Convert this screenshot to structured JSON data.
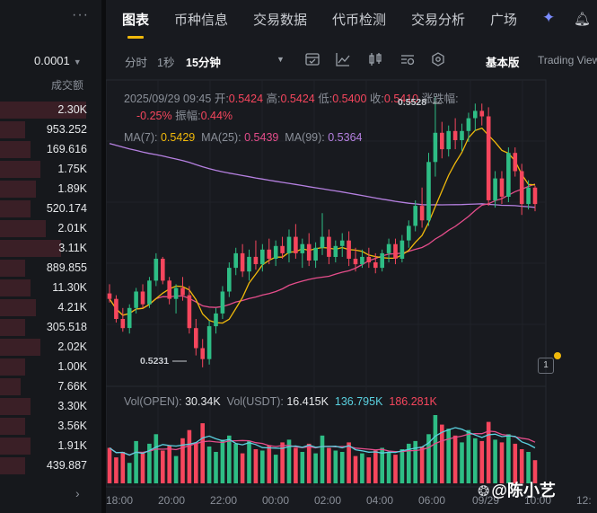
{
  "orderbook": {
    "more_label": "···",
    "precision": "0.0001",
    "volume_header": "成交额",
    "rows": [
      {
        "vol": "2.30K",
        "fill": 0.85
      },
      {
        "vol": "953.252",
        "fill": 0.25
      },
      {
        "vol": "169.616",
        "fill": 0.3
      },
      {
        "vol": "1.75K",
        "fill": 0.4
      },
      {
        "vol": "1.89K",
        "fill": 0.35
      },
      {
        "vol": "520.174",
        "fill": 0.3
      },
      {
        "vol": "2.01K",
        "fill": 0.45
      },
      {
        "vol": "3.11K",
        "fill": 0.6
      },
      {
        "vol": "889.855",
        "fill": 0.25
      },
      {
        "vol": "11.30K",
        "fill": 0.3
      },
      {
        "vol": "4.21K",
        "fill": 0.35
      },
      {
        "vol": "305.518",
        "fill": 0.25
      },
      {
        "vol": "2.02K",
        "fill": 0.4
      },
      {
        "vol": "1.00K",
        "fill": 0.25
      },
      {
        "vol": "7.66K",
        "fill": 0.2
      },
      {
        "vol": "3.30K",
        "fill": 0.3
      },
      {
        "vol": "3.56K",
        "fill": 0.25
      },
      {
        "vol": "1.91K",
        "fill": 0.3
      },
      {
        "vol": "439.887",
        "fill": 0.25
      }
    ],
    "expand_label": "›"
  },
  "tabs": [
    {
      "label": "图表",
      "active": true
    },
    {
      "label": "币种信息",
      "active": false
    },
    {
      "label": "交易数据",
      "active": false
    },
    {
      "label": "代币检测",
      "active": false
    },
    {
      "label": "交易分析",
      "active": false
    },
    {
      "label": "广场",
      "active": false
    }
  ],
  "toolbar": {
    "intervals": [
      {
        "label": "分时",
        "selected": false
      },
      {
        "label": "1秒",
        "selected": false
      },
      {
        "label": "15分钟",
        "selected": true
      }
    ],
    "caret": "▼",
    "tools": [
      "indicator-icon",
      "line-tool-icon",
      "candle-type-icon",
      "drawing-icon",
      "settings-icon"
    ],
    "basic_view": "基本版",
    "tradingview": "Trading View"
  },
  "ohlc": {
    "date": "2025/09/29 09:45",
    "open_label": "开:",
    "open": "0.5424",
    "high_label": "高:",
    "high": "0.5424",
    "low_label": "低:",
    "low": "0.5400",
    "close_label": "收:",
    "close": "0.5410",
    "change_label": "涨跌幅:",
    "change": "-0.25%",
    "amp_label": "振幅:",
    "amp": "0.44%"
  },
  "ma": {
    "ma7_label": "MA(7):",
    "ma7": "0.5429",
    "ma25_label": "MA(25):",
    "ma25": "0.5439",
    "ma99_label": "MA(99):",
    "ma99": "0.5364"
  },
  "vol": {
    "label1": "Vol(OPEN):",
    "val1": "30.34K",
    "label2": "Vol(USDT):",
    "val2": "16.415K",
    "val3": "136.795K",
    "val4": "186.281K"
  },
  "price_markers": {
    "high": "0.5528",
    "low": "0.5231"
  },
  "time_axis": [
    "18:00",
    "20:00",
    "22:00",
    "00:00",
    "02:00",
    "04:00",
    "06:00",
    "09/29",
    "10:00",
    "12:"
  ],
  "badge_label": "1",
  "watermark": "@陈小艺",
  "colors": {
    "up": "#2ebd85",
    "down": "#f6465d",
    "ma7": "#f0b90b",
    "ma25": "#e54d8b",
    "ma99": "#b580e0",
    "accent": "#f0b90b"
  },
  "chart_data": {
    "type": "candlestick",
    "interval": "15分钟",
    "x_range": [
      "18:00",
      "10:00"
    ],
    "ylim": [
      0.522,
      0.554
    ],
    "candles": [
      {
        "o": 0.5312,
        "h": 0.5322,
        "l": 0.5302,
        "c": 0.5306
      },
      {
        "o": 0.5306,
        "h": 0.531,
        "l": 0.528,
        "c": 0.5284
      },
      {
        "o": 0.5284,
        "h": 0.5296,
        "l": 0.527,
        "c": 0.5274
      },
      {
        "o": 0.5274,
        "h": 0.53,
        "l": 0.5268,
        "c": 0.5296
      },
      {
        "o": 0.5296,
        "h": 0.5318,
        "l": 0.529,
        "c": 0.5314
      },
      {
        "o": 0.5314,
        "h": 0.5322,
        "l": 0.5296,
        "c": 0.53
      },
      {
        "o": 0.53,
        "h": 0.533,
        "l": 0.5296,
        "c": 0.5326
      },
      {
        "o": 0.5326,
        "h": 0.5356,
        "l": 0.532,
        "c": 0.535
      },
      {
        "o": 0.535,
        "h": 0.5352,
        "l": 0.5322,
        "c": 0.5326
      },
      {
        "o": 0.5326,
        "h": 0.533,
        "l": 0.53,
        "c": 0.5306
      },
      {
        "o": 0.5306,
        "h": 0.5322,
        "l": 0.529,
        "c": 0.5318
      },
      {
        "o": 0.5318,
        "h": 0.533,
        "l": 0.5304,
        "c": 0.531
      },
      {
        "o": 0.531,
        "h": 0.532,
        "l": 0.5268,
        "c": 0.5274
      },
      {
        "o": 0.5274,
        "h": 0.5284,
        "l": 0.5244,
        "c": 0.5252
      },
      {
        "o": 0.5252,
        "h": 0.5262,
        "l": 0.5231,
        "c": 0.524
      },
      {
        "o": 0.524,
        "h": 0.5282,
        "l": 0.5234,
        "c": 0.5276
      },
      {
        "o": 0.5276,
        "h": 0.5296,
        "l": 0.5268,
        "c": 0.529
      },
      {
        "o": 0.529,
        "h": 0.532,
        "l": 0.5284,
        "c": 0.5314
      },
      {
        "o": 0.5314,
        "h": 0.5346,
        "l": 0.5308,
        "c": 0.534
      },
      {
        "o": 0.534,
        "h": 0.5362,
        "l": 0.5332,
        "c": 0.5356
      },
      {
        "o": 0.5356,
        "h": 0.5366,
        "l": 0.533,
        "c": 0.5336
      },
      {
        "o": 0.5336,
        "h": 0.536,
        "l": 0.5326,
        "c": 0.5352
      },
      {
        "o": 0.5352,
        "h": 0.537,
        "l": 0.5338,
        "c": 0.5344
      },
      {
        "o": 0.5344,
        "h": 0.5366,
        "l": 0.5336,
        "c": 0.536
      },
      {
        "o": 0.536,
        "h": 0.5372,
        "l": 0.5344,
        "c": 0.535
      },
      {
        "o": 0.535,
        "h": 0.537,
        "l": 0.5342,
        "c": 0.5364
      },
      {
        "o": 0.5364,
        "h": 0.5374,
        "l": 0.535,
        "c": 0.5356
      },
      {
        "o": 0.5356,
        "h": 0.5382,
        "l": 0.5346,
        "c": 0.5374
      },
      {
        "o": 0.5374,
        "h": 0.5388,
        "l": 0.535,
        "c": 0.5356
      },
      {
        "o": 0.5356,
        "h": 0.5372,
        "l": 0.534,
        "c": 0.5366
      },
      {
        "o": 0.5366,
        "h": 0.5378,
        "l": 0.5342,
        "c": 0.5348
      },
      {
        "o": 0.5348,
        "h": 0.5368,
        "l": 0.534,
        "c": 0.5362
      },
      {
        "o": 0.5362,
        "h": 0.54,
        "l": 0.5354,
        "c": 0.5374
      },
      {
        "o": 0.5374,
        "h": 0.5382,
        "l": 0.5344,
        "c": 0.5352
      },
      {
        "o": 0.5352,
        "h": 0.537,
        "l": 0.5346,
        "c": 0.5364
      },
      {
        "o": 0.5364,
        "h": 0.5378,
        "l": 0.5352,
        "c": 0.537
      },
      {
        "o": 0.537,
        "h": 0.538,
        "l": 0.5342,
        "c": 0.535
      },
      {
        "o": 0.535,
        "h": 0.5362,
        "l": 0.5336,
        "c": 0.5344
      },
      {
        "o": 0.5344,
        "h": 0.536,
        "l": 0.534,
        "c": 0.5352
      },
      {
        "o": 0.5352,
        "h": 0.5362,
        "l": 0.534,
        "c": 0.5346
      },
      {
        "o": 0.5346,
        "h": 0.5356,
        "l": 0.5334,
        "c": 0.534
      },
      {
        "o": 0.534,
        "h": 0.536,
        "l": 0.5336,
        "c": 0.5356
      },
      {
        "o": 0.5356,
        "h": 0.5372,
        "l": 0.5346,
        "c": 0.5366
      },
      {
        "o": 0.5366,
        "h": 0.5372,
        "l": 0.5344,
        "c": 0.535
      },
      {
        "o": 0.535,
        "h": 0.5376,
        "l": 0.5346,
        "c": 0.537
      },
      {
        "o": 0.537,
        "h": 0.5392,
        "l": 0.5362,
        "c": 0.5386
      },
      {
        "o": 0.5386,
        "h": 0.5414,
        "l": 0.538,
        "c": 0.5408
      },
      {
        "o": 0.5408,
        "h": 0.5428,
        "l": 0.5384,
        "c": 0.5392
      },
      {
        "o": 0.5392,
        "h": 0.5466,
        "l": 0.5386,
        "c": 0.5456
      },
      {
        "o": 0.5456,
        "h": 0.5528,
        "l": 0.544,
        "c": 0.5488
      },
      {
        "o": 0.5488,
        "h": 0.55,
        "l": 0.546,
        "c": 0.547
      },
      {
        "o": 0.547,
        "h": 0.5496,
        "l": 0.5462,
        "c": 0.549
      },
      {
        "o": 0.549,
        "h": 0.5504,
        "l": 0.547,
        "c": 0.548
      },
      {
        "o": 0.548,
        "h": 0.5498,
        "l": 0.5468,
        "c": 0.549
      },
      {
        "o": 0.549,
        "h": 0.551,
        "l": 0.5478,
        "c": 0.5504
      },
      {
        "o": 0.5504,
        "h": 0.552,
        "l": 0.549,
        "c": 0.5512
      },
      {
        "o": 0.5512,
        "h": 0.552,
        "l": 0.5496,
        "c": 0.5506
      },
      {
        "o": 0.5506,
        "h": 0.5516,
        "l": 0.5408,
        "c": 0.5414
      },
      {
        "o": 0.5414,
        "h": 0.5446,
        "l": 0.5406,
        "c": 0.5438
      },
      {
        "o": 0.5438,
        "h": 0.5446,
        "l": 0.541,
        "c": 0.5418
      },
      {
        "o": 0.5418,
        "h": 0.5472,
        "l": 0.5412,
        "c": 0.5466
      },
      {
        "o": 0.5466,
        "h": 0.5472,
        "l": 0.544,
        "c": 0.5446
      },
      {
        "o": 0.5446,
        "h": 0.5454,
        "l": 0.5398,
        "c": 0.541
      },
      {
        "o": 0.541,
        "h": 0.5436,
        "l": 0.5404,
        "c": 0.5428
      },
      {
        "o": 0.5428,
        "h": 0.543,
        "l": 0.5402,
        "c": 0.541
      }
    ],
    "volume": [
      52,
      38,
      46,
      30,
      62,
      44,
      58,
      72,
      48,
      55,
      40,
      66,
      78,
      60,
      88,
      54,
      46,
      64,
      70,
      58,
      44,
      62,
      50,
      48,
      56,
      42,
      60,
      64,
      52,
      46,
      58,
      44,
      70,
      52,
      48,
      46,
      60,
      40,
      44,
      38,
      48,
      52,
      46,
      42,
      50,
      58,
      62,
      54,
      72,
      100,
      86,
      80,
      70,
      60,
      78,
      66,
      62,
      90,
      64,
      60,
      72,
      58,
      50,
      46,
      34
    ],
    "volume_ylim": [
      0,
      100
    ]
  }
}
